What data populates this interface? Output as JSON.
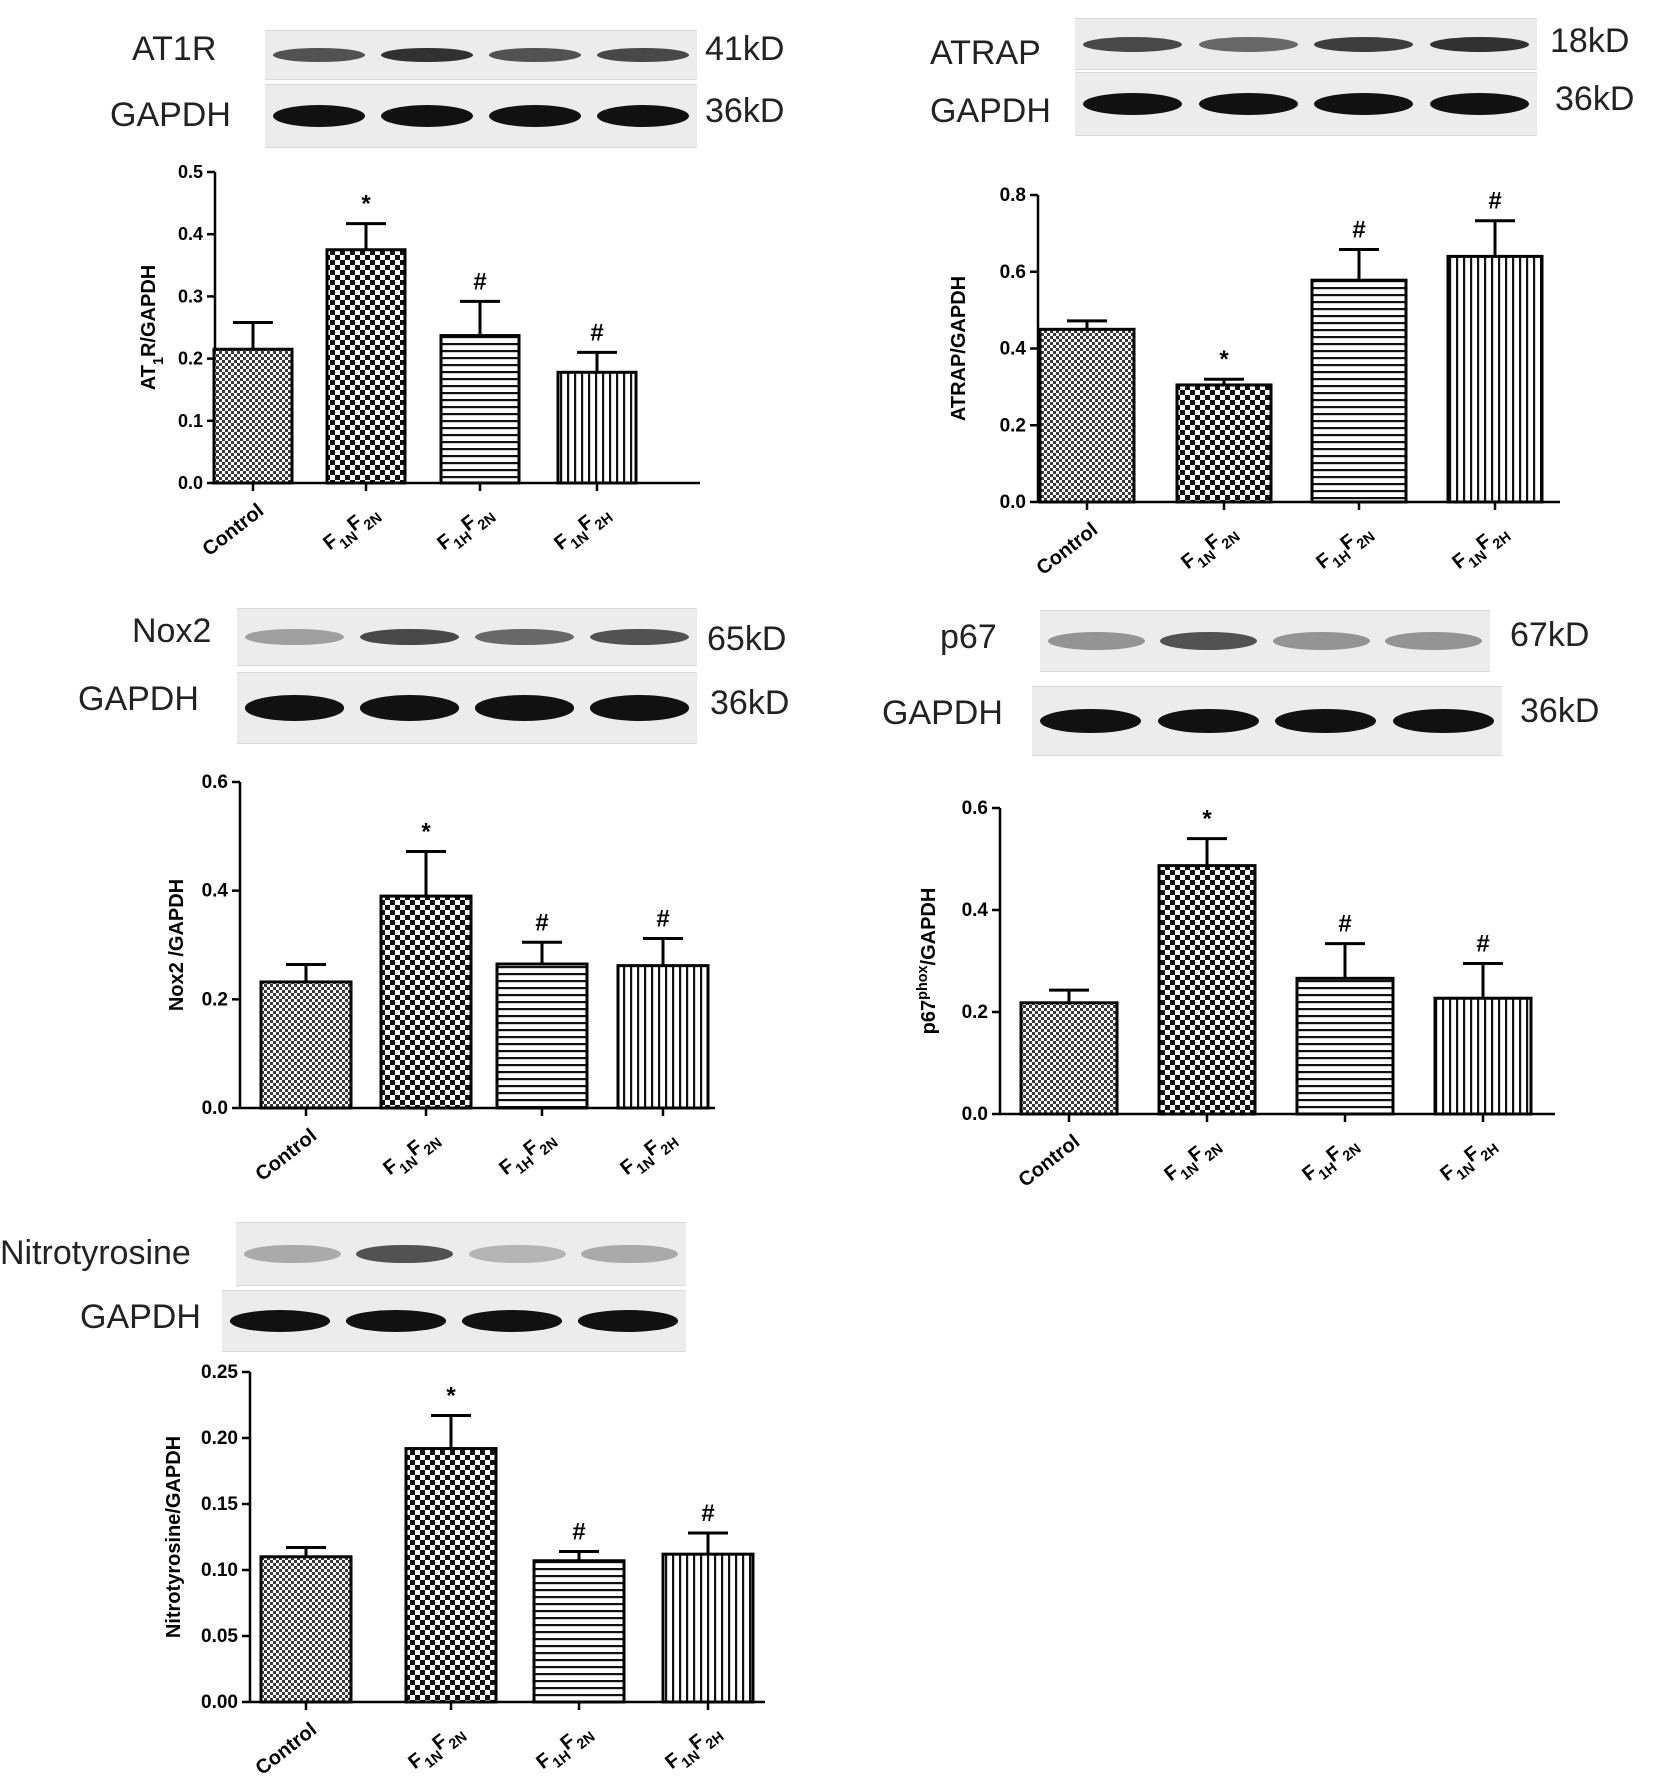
{
  "panels": [
    {
      "id": "at1r",
      "blots": [
        {
          "label": "AT1R",
          "kd": "41kD",
          "band_intensity": [
            0.7,
            0.85,
            0.7,
            0.75
          ]
        },
        {
          "label": "GAPDH",
          "kd": "36kD",
          "band_intensity": [
            1,
            1,
            1,
            1
          ]
        }
      ]
    },
    {
      "id": "atrap",
      "blots": [
        {
          "label": "ATRAP",
          "kd": "18kD",
          "band_intensity": [
            0.75,
            0.6,
            0.8,
            0.85
          ]
        },
        {
          "label": "GAPDH",
          "kd": "36kD",
          "band_intensity": [
            1,
            1,
            1,
            1
          ]
        }
      ]
    },
    {
      "id": "nox2",
      "blots": [
        {
          "label": "Nox2",
          "kd": "65kD",
          "band_intensity": [
            0.35,
            0.75,
            0.6,
            0.7
          ]
        },
        {
          "label": "GAPDH",
          "kd": "36kD",
          "band_intensity": [
            1,
            1,
            1,
            1
          ]
        }
      ]
    },
    {
      "id": "p67",
      "blots": [
        {
          "label": "p67",
          "kd": "67kD",
          "band_intensity": [
            0.4,
            0.7,
            0.4,
            0.4
          ]
        },
        {
          "label": "GAPDH",
          "kd": "36kD",
          "band_intensity": [
            1,
            1,
            1,
            1
          ]
        }
      ]
    },
    {
      "id": "nitro",
      "blots": [
        {
          "label": "Nitrotyrosine",
          "kd": "",
          "band_intensity": [
            0.3,
            0.7,
            0.25,
            0.3
          ]
        },
        {
          "label": "GAPDH",
          "kd": "",
          "band_intensity": [
            1,
            1,
            1,
            1
          ]
        }
      ]
    }
  ],
  "chart_data": [
    {
      "type": "bar",
      "categories": [
        "Control",
        "F1NF2N",
        "F1HF2N",
        "F1NF2H"
      ],
      "category_labels": [
        {
          "main": "Control"
        },
        {
          "parts": [
            [
              "F",
              ""
            ],
            [
              "1N",
              "sub"
            ],
            [
              "F",
              ""
            ],
            [
              "2N",
              "sub"
            ]
          ]
        },
        {
          "parts": [
            [
              "F",
              ""
            ],
            [
              "1H",
              "sub"
            ],
            [
              "F",
              ""
            ],
            [
              "2N",
              "sub"
            ]
          ]
        },
        {
          "parts": [
            [
              "F",
              ""
            ],
            [
              "1N",
              "sub"
            ],
            [
              "F",
              ""
            ],
            [
              "2H",
              "sub"
            ]
          ]
        }
      ],
      "values": [
        0.215,
        0.375,
        0.237,
        0.178
      ],
      "errors": [
        0.043,
        0.042,
        0.055,
        0.032
      ],
      "markers": [
        "",
        "*",
        "#",
        "#"
      ],
      "ylabel": "AT1R/GAPDH",
      "ylabel_parts": [
        [
          "AT",
          ""
        ],
        [
          "1",
          "sub"
        ],
        [
          "R/GAPDH",
          ""
        ]
      ],
      "ylim": [
        0,
        0.5
      ],
      "yticks": [
        "0.0",
        "0.1",
        "0.2",
        "0.3",
        "0.4",
        "0.5"
      ],
      "patterns": [
        "fine-check",
        "check",
        "hlines",
        "vlines"
      ]
    },
    {
      "type": "bar",
      "categories": [
        "Control",
        "F1NF2N",
        "F1HF2N",
        "F1NF2H"
      ],
      "category_labels": [
        {
          "main": "Control"
        },
        {
          "parts": [
            [
              "F",
              ""
            ],
            [
              "1N",
              "sub"
            ],
            [
              "F",
              ""
            ],
            [
              "2N",
              "sub"
            ]
          ]
        },
        {
          "parts": [
            [
              "F",
              ""
            ],
            [
              "1H",
              "sub"
            ],
            [
              "F",
              ""
            ],
            [
              "2N",
              "sub"
            ]
          ]
        },
        {
          "parts": [
            [
              "F",
              ""
            ],
            [
              "1N",
              "sub"
            ],
            [
              "F",
              ""
            ],
            [
              "2H",
              "sub"
            ]
          ]
        }
      ],
      "values": [
        0.45,
        0.305,
        0.578,
        0.64
      ],
      "errors": [
        0.022,
        0.015,
        0.08,
        0.093
      ],
      "markers": [
        "",
        "*",
        "#",
        "#"
      ],
      "ylabel": "ATRAP/GAPDH",
      "ylabel_parts": [
        [
          "ATRAP/GAPDH",
          ""
        ]
      ],
      "ylim": [
        0,
        0.8
      ],
      "yticks": [
        "0.0",
        "0.2",
        "0.4",
        "0.6",
        "0.8"
      ],
      "patterns": [
        "fine-check",
        "check",
        "hlines",
        "vlines"
      ]
    },
    {
      "type": "bar",
      "categories": [
        "Control",
        "F1NF2N",
        "F1HF2N",
        "F1NF2H"
      ],
      "category_labels": [
        {
          "main": "Control"
        },
        {
          "parts": [
            [
              "F",
              ""
            ],
            [
              "1N",
              "sub"
            ],
            [
              "F",
              ""
            ],
            [
              "2N",
              "sub"
            ]
          ]
        },
        {
          "parts": [
            [
              "F",
              ""
            ],
            [
              "1H",
              "sub"
            ],
            [
              "F",
              ""
            ],
            [
              "2N",
              "sub"
            ]
          ]
        },
        {
          "parts": [
            [
              "F",
              ""
            ],
            [
              "1N",
              "sub"
            ],
            [
              "F",
              ""
            ],
            [
              "2H",
              "sub"
            ]
          ]
        }
      ],
      "values": [
        0.232,
        0.39,
        0.265,
        0.262
      ],
      "errors": [
        0.032,
        0.082,
        0.04,
        0.05
      ],
      "markers": [
        "",
        "*",
        "#",
        "#"
      ],
      "ylabel": "Nox2 /GAPDH",
      "ylabel_parts": [
        [
          "Nox2 /GAPDH",
          ""
        ]
      ],
      "ylim": [
        0,
        0.6
      ],
      "yticks": [
        "0.0",
        "0.2",
        "0.4",
        "0.6"
      ],
      "patterns": [
        "fine-check",
        "check",
        "hlines",
        "vlines"
      ]
    },
    {
      "type": "bar",
      "categories": [
        "Control",
        "F1NF2N",
        "F1HF2N",
        "F1NF2H"
      ],
      "category_labels": [
        {
          "main": "Control"
        },
        {
          "parts": [
            [
              "F",
              ""
            ],
            [
              "1N",
              "sub"
            ],
            [
              "F",
              ""
            ],
            [
              "2N",
              "sub"
            ]
          ]
        },
        {
          "parts": [
            [
              "F",
              ""
            ],
            [
              "1H",
              "sub"
            ],
            [
              "F",
              ""
            ],
            [
              "2N",
              "sub"
            ]
          ]
        },
        {
          "parts": [
            [
              "F",
              ""
            ],
            [
              "1N",
              "sub"
            ],
            [
              "F",
              ""
            ],
            [
              "2H",
              "sub"
            ]
          ]
        }
      ],
      "values": [
        0.218,
        0.487,
        0.266,
        0.227
      ],
      "errors": [
        0.025,
        0.053,
        0.068,
        0.068
      ],
      "markers": [
        "",
        "*",
        "#",
        "#"
      ],
      "ylabel": "p67phox/GAPDH",
      "ylabel_parts": [
        [
          "p67",
          ""
        ],
        [
          "phox",
          "sup"
        ],
        [
          "/GAPDH",
          ""
        ]
      ],
      "ylim": [
        0,
        0.6
      ],
      "yticks": [
        "0.0",
        "0.2",
        "0.4",
        "0.6"
      ],
      "patterns": [
        "fine-check",
        "check",
        "hlines",
        "vlines"
      ]
    },
    {
      "type": "bar",
      "categories": [
        "Control",
        "F1NF2N",
        "F1HF2N",
        "F1NF2H"
      ],
      "category_labels": [
        {
          "main": "Control"
        },
        {
          "parts": [
            [
              "F",
              ""
            ],
            [
              "1N",
              "sub"
            ],
            [
              "F",
              ""
            ],
            [
              "2N",
              "sub"
            ]
          ]
        },
        {
          "parts": [
            [
              "F",
              ""
            ],
            [
              "1H",
              "sub"
            ],
            [
              "F",
              ""
            ],
            [
              "2N",
              "sub"
            ]
          ]
        },
        {
          "parts": [
            [
              "F",
              ""
            ],
            [
              "1N",
              "sub"
            ],
            [
              "F",
              ""
            ],
            [
              "2H",
              "sub"
            ]
          ]
        }
      ],
      "values": [
        0.11,
        0.192,
        0.107,
        0.112
      ],
      "errors": [
        0.007,
        0.025,
        0.007,
        0.016
      ],
      "markers": [
        "",
        "*",
        "#",
        "#"
      ],
      "ylabel": "Nitrotyrosine/GAPDH",
      "ylabel_parts": [
        [
          "Nitrotyrosine/GAPDH",
          ""
        ]
      ],
      "ylim": [
        0,
        0.25
      ],
      "yticks": [
        "0.00",
        "0.05",
        "0.10",
        "0.15",
        "0.20",
        "0.25"
      ],
      "patterns": [
        "fine-check",
        "check",
        "hlines",
        "vlines"
      ]
    }
  ]
}
